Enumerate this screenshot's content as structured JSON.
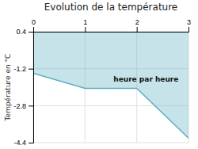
{
  "chart_data": {
    "type": "line",
    "title": "Evolution de la température",
    "ylabel": "Température en °C",
    "x": [
      0,
      1,
      2,
      3
    ],
    "values": [
      -1.4,
      -2.05,
      -2.05,
      -4.2
    ],
    "color": "#5bafc0",
    "xlim": [
      0,
      3
    ],
    "ylim": [
      -4.4,
      0.4
    ],
    "xticks": [
      0,
      1,
      2,
      3
    ],
    "yticks": [
      0.4,
      -1.2,
      -2.8,
      -4.4
    ],
    "grid": true,
    "annotations": [
      {
        "text": "heure par heure",
        "x": 1.55,
        "y": -1.55
      }
    ]
  }
}
